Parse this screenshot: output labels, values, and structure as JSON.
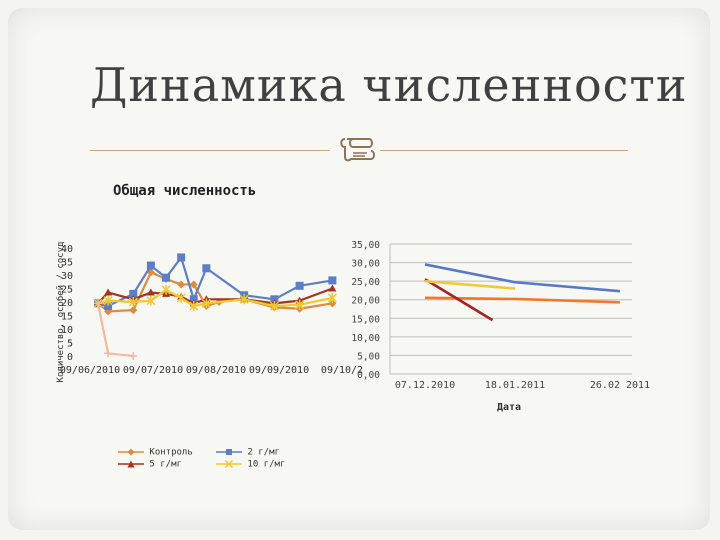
{
  "slide": {
    "title": "Динамика численности"
  },
  "colors": {
    "control": "#e08a40",
    "two": "#5b7fc6",
    "five": "#a8321e",
    "ten": "#f0c832",
    "rule": "#c8a878",
    "right_orange": "#f07a2a",
    "right_blue": "#5878c8",
    "right_red": "#a82020",
    "right_yellow": "#f0c83c"
  },
  "icons": {
    "divider": "scroll-ornament-icon"
  },
  "chart_data": [
    {
      "type": "line",
      "title": "Общая численность",
      "ylabel": "Количество, особей / сосуд",
      "xlabel": "",
      "ylim": [
        0,
        40
      ],
      "yticks": [
        "0",
        "5",
        "10",
        "15",
        "20",
        "25",
        "30",
        "35",
        "40"
      ],
      "xticks": [
        "09/06/2010",
        "09/07/2010",
        "09/08/2010",
        "09/09/2010",
        "09/10/2"
      ],
      "grid": false,
      "legend_position": "bottom",
      "series": [
        {
          "name": "Контроль",
          "marker": "diamond",
          "points": [
            [
              0,
              19.5
            ],
            [
              4,
              16.5
            ],
            [
              14,
              17
            ],
            [
              21,
              31
            ],
            [
              27,
              28.5
            ],
            [
              33,
              26.5
            ],
            [
              38,
              26.5
            ],
            [
              43,
              18.5
            ],
            [
              48,
              20
            ],
            [
              58,
              21
            ],
            [
              70,
              18
            ],
            [
              80,
              17.5
            ],
            [
              93,
              19.5
            ]
          ]
        },
        {
          "name": "2 г/мг",
          "marker": "square",
          "points": [
            [
              0,
              19.5
            ],
            [
              4,
              18.5
            ],
            [
              14,
              23
            ],
            [
              21,
              33.5
            ],
            [
              27,
              29
            ],
            [
              33,
              36.5
            ],
            [
              38,
              21
            ],
            [
              43,
              32.5
            ],
            [
              58,
              22.5
            ],
            [
              70,
              21
            ],
            [
              80,
              26
            ],
            [
              93,
              28
            ]
          ]
        },
        {
          "name": "5 г/мг",
          "marker": "triangle",
          "points": [
            [
              0,
              19.5
            ],
            [
              4,
              23.5
            ],
            [
              14,
              21
            ],
            [
              21,
              23.5
            ],
            [
              27,
              23
            ],
            [
              33,
              22
            ],
            [
              38,
              19.5
            ],
            [
              43,
              21
            ],
            [
              58,
              21
            ],
            [
              70,
              19.5
            ],
            [
              80,
              20.5
            ],
            [
              93,
              25
            ]
          ]
        },
        {
          "name": "10 г/мг",
          "marker": "star",
          "points": [
            [
              0,
              19.5
            ],
            [
              4,
              20.5
            ],
            [
              14,
              20
            ],
            [
              21,
              20.5
            ],
            [
              27,
              24.5
            ],
            [
              33,
              21.5
            ],
            [
              38,
              18.5
            ],
            [
              43,
              19.5
            ],
            [
              58,
              21
            ],
            [
              70,
              18.5
            ],
            [
              80,
              19
            ],
            [
              93,
              21.5
            ]
          ]
        },
        {
          "name": "",
          "marker": "cross",
          "points": [
            [
              0,
              19.5
            ],
            [
              4,
              1
            ],
            [
              14,
              0
            ]
          ]
        }
      ]
    },
    {
      "type": "line",
      "title": "",
      "xlabel": "Дата",
      "ylabel": "",
      "ylim": [
        0,
        35
      ],
      "yticks": [
        "0,00",
        "5,00",
        "10,00",
        "15,00",
        "20,00",
        "25,00",
        "30,00",
        "35,00"
      ],
      "categories": [
        "07.12.2010",
        "18.01.2011",
        "26.02 2011"
      ],
      "grid": true,
      "series": [
        {
          "color_key": "right_orange",
          "points": [
            [
              0,
              20.5
            ],
            [
              1,
              20.2
            ],
            [
              2,
              19.3
            ]
          ]
        },
        {
          "color_key": "right_blue",
          "points": [
            [
              0,
              29.5
            ],
            [
              1,
              24.7
            ],
            [
              2,
              22.3
            ]
          ]
        },
        {
          "color_key": "right_red",
          "points": [
            [
              0,
              25.5
            ],
            [
              0.75,
              14.5
            ]
          ]
        },
        {
          "color_key": "right_yellow",
          "points": [
            [
              0,
              25
            ],
            [
              1,
              23
            ]
          ]
        }
      ]
    }
  ]
}
